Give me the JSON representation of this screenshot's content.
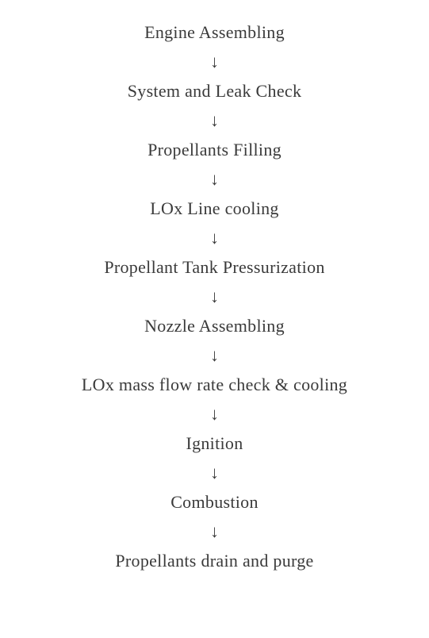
{
  "flowchart": {
    "type": "flowchart",
    "direction": "vertical",
    "background_color": "#ffffff",
    "text_color": "#3a3a3a",
    "fontsize": 22,
    "font_family": "serif",
    "arrow_glyph": "↓",
    "steps": [
      {
        "label": "Engine Assembling"
      },
      {
        "label": "System and Leak Check"
      },
      {
        "label": "Propellants Filling"
      },
      {
        "label": "LOx Line cooling"
      },
      {
        "label": "Propellant Tank Pressurization"
      },
      {
        "label": "Nozzle Assembling"
      },
      {
        "label": "LOx mass flow rate check & cooling"
      },
      {
        "label": "Ignition"
      },
      {
        "label": "Combustion"
      },
      {
        "label": "Propellants drain and purge"
      }
    ]
  }
}
